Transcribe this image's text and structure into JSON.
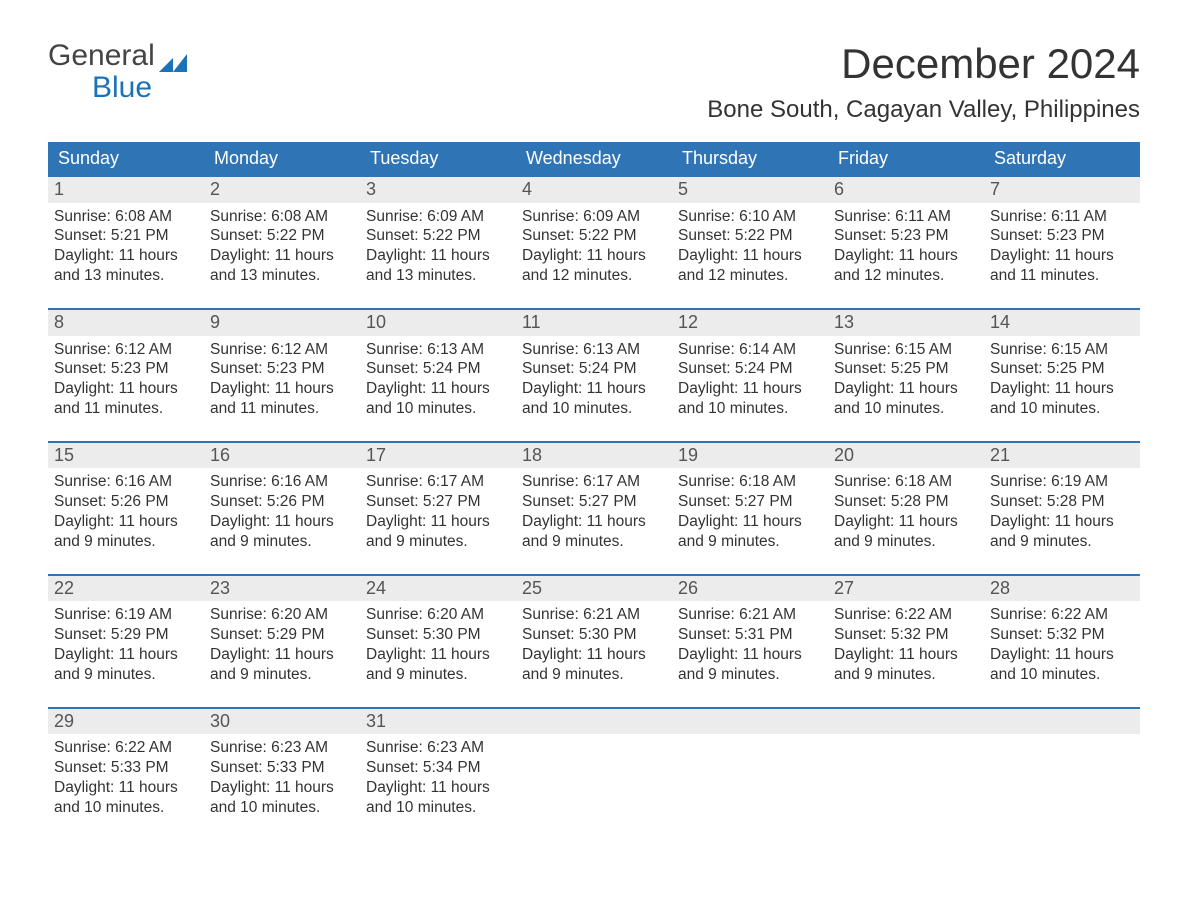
{
  "brand": {
    "text_general": "General",
    "text_blue": "Blue",
    "flag_color": "#1b72b8"
  },
  "title": {
    "month": "December 2024",
    "location": "Bone South, Cagayan Valley, Philippines"
  },
  "colors": {
    "header_bg": "#2f74b5",
    "header_text": "#ffffff",
    "daynum_bg": "#ececec",
    "daynum_text": "#555555",
    "body_text": "#333333",
    "cell_border": "#2f74b5",
    "page_bg": "#ffffff"
  },
  "weekdays": [
    "Sunday",
    "Monday",
    "Tuesday",
    "Wednesday",
    "Thursday",
    "Friday",
    "Saturday"
  ],
  "labels": {
    "sunrise": "Sunrise: ",
    "sunset": "Sunset: ",
    "daylight": "Daylight: "
  },
  "weeks": [
    [
      {
        "n": "1",
        "sunrise": "6:08 AM",
        "sunset": "5:21 PM",
        "daylight": "11 hours and 13 minutes."
      },
      {
        "n": "2",
        "sunrise": "6:08 AM",
        "sunset": "5:22 PM",
        "daylight": "11 hours and 13 minutes."
      },
      {
        "n": "3",
        "sunrise": "6:09 AM",
        "sunset": "5:22 PM",
        "daylight": "11 hours and 13 minutes."
      },
      {
        "n": "4",
        "sunrise": "6:09 AM",
        "sunset": "5:22 PM",
        "daylight": "11 hours and 12 minutes."
      },
      {
        "n": "5",
        "sunrise": "6:10 AM",
        "sunset": "5:22 PM",
        "daylight": "11 hours and 12 minutes."
      },
      {
        "n": "6",
        "sunrise": "6:11 AM",
        "sunset": "5:23 PM",
        "daylight": "11 hours and 12 minutes."
      },
      {
        "n": "7",
        "sunrise": "6:11 AM",
        "sunset": "5:23 PM",
        "daylight": "11 hours and 11 minutes."
      }
    ],
    [
      {
        "n": "8",
        "sunrise": "6:12 AM",
        "sunset": "5:23 PM",
        "daylight": "11 hours and 11 minutes."
      },
      {
        "n": "9",
        "sunrise": "6:12 AM",
        "sunset": "5:23 PM",
        "daylight": "11 hours and 11 minutes."
      },
      {
        "n": "10",
        "sunrise": "6:13 AM",
        "sunset": "5:24 PM",
        "daylight": "11 hours and 10 minutes."
      },
      {
        "n": "11",
        "sunrise": "6:13 AM",
        "sunset": "5:24 PM",
        "daylight": "11 hours and 10 minutes."
      },
      {
        "n": "12",
        "sunrise": "6:14 AM",
        "sunset": "5:24 PM",
        "daylight": "11 hours and 10 minutes."
      },
      {
        "n": "13",
        "sunrise": "6:15 AM",
        "sunset": "5:25 PM",
        "daylight": "11 hours and 10 minutes."
      },
      {
        "n": "14",
        "sunrise": "6:15 AM",
        "sunset": "5:25 PM",
        "daylight": "11 hours and 10 minutes."
      }
    ],
    [
      {
        "n": "15",
        "sunrise": "6:16 AM",
        "sunset": "5:26 PM",
        "daylight": "11 hours and 9 minutes."
      },
      {
        "n": "16",
        "sunrise": "6:16 AM",
        "sunset": "5:26 PM",
        "daylight": "11 hours and 9 minutes."
      },
      {
        "n": "17",
        "sunrise": "6:17 AM",
        "sunset": "5:27 PM",
        "daylight": "11 hours and 9 minutes."
      },
      {
        "n": "18",
        "sunrise": "6:17 AM",
        "sunset": "5:27 PM",
        "daylight": "11 hours and 9 minutes."
      },
      {
        "n": "19",
        "sunrise": "6:18 AM",
        "sunset": "5:27 PM",
        "daylight": "11 hours and 9 minutes."
      },
      {
        "n": "20",
        "sunrise": "6:18 AM",
        "sunset": "5:28 PM",
        "daylight": "11 hours and 9 minutes."
      },
      {
        "n": "21",
        "sunrise": "6:19 AM",
        "sunset": "5:28 PM",
        "daylight": "11 hours and 9 minutes."
      }
    ],
    [
      {
        "n": "22",
        "sunrise": "6:19 AM",
        "sunset": "5:29 PM",
        "daylight": "11 hours and 9 minutes."
      },
      {
        "n": "23",
        "sunrise": "6:20 AM",
        "sunset": "5:29 PM",
        "daylight": "11 hours and 9 minutes."
      },
      {
        "n": "24",
        "sunrise": "6:20 AM",
        "sunset": "5:30 PM",
        "daylight": "11 hours and 9 minutes."
      },
      {
        "n": "25",
        "sunrise": "6:21 AM",
        "sunset": "5:30 PM",
        "daylight": "11 hours and 9 minutes."
      },
      {
        "n": "26",
        "sunrise": "6:21 AM",
        "sunset": "5:31 PM",
        "daylight": "11 hours and 9 minutes."
      },
      {
        "n": "27",
        "sunrise": "6:22 AM",
        "sunset": "5:32 PM",
        "daylight": "11 hours and 9 minutes."
      },
      {
        "n": "28",
        "sunrise": "6:22 AM",
        "sunset": "5:32 PM",
        "daylight": "11 hours and 10 minutes."
      }
    ],
    [
      {
        "n": "29",
        "sunrise": "6:22 AM",
        "sunset": "5:33 PM",
        "daylight": "11 hours and 10 minutes."
      },
      {
        "n": "30",
        "sunrise": "6:23 AM",
        "sunset": "5:33 PM",
        "daylight": "11 hours and 10 minutes."
      },
      {
        "n": "31",
        "sunrise": "6:23 AM",
        "sunset": "5:34 PM",
        "daylight": "11 hours and 10 minutes."
      },
      null,
      null,
      null,
      null
    ]
  ]
}
